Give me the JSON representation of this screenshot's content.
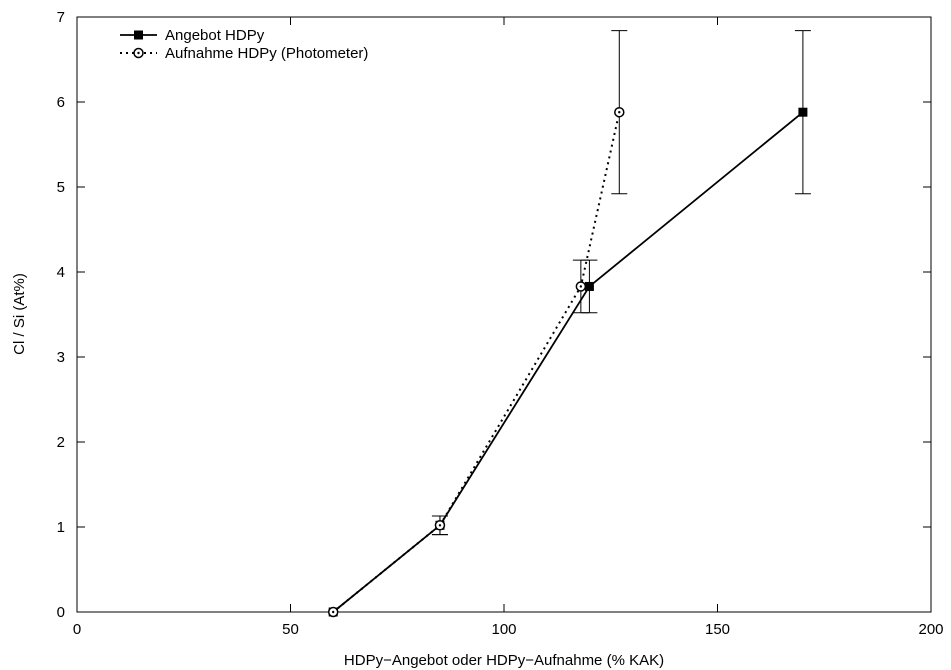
{
  "chart_data": {
    "type": "line",
    "title": "",
    "xlabel": "HDPy−Angebot oder HDPy−Aufnahme (% KAK)",
    "ylabel": "Cl / Si (At%)",
    "xlim": [
      0,
      200
    ],
    "ylim": [
      0,
      7
    ],
    "xticks": [
      "0",
      "50",
      "100",
      "150",
      "200"
    ],
    "yticks": [
      "0",
      "1",
      "2",
      "3",
      "4",
      "5",
      "6",
      "7"
    ],
    "grid": false,
    "legend_position": "top-left",
    "series": [
      {
        "name": "Angebot HDPy",
        "line_style": "solid",
        "marker": "filled-square",
        "color": "#000000",
        "x": [
          60,
          85,
          120,
          170
        ],
        "y": [
          0,
          1.02,
          3.83,
          5.88
        ],
        "y_err": [
          0,
          0.11,
          0.31,
          0.96
        ]
      },
      {
        "name": "Aufnahme HDPy (Photometer)",
        "line_style": "dotted",
        "marker": "open-circle",
        "color": "#000000",
        "x": [
          60,
          85,
          118,
          127
        ],
        "y": [
          0,
          1.02,
          3.83,
          5.88
        ],
        "y_err": [
          0,
          0.11,
          0.31,
          0.96
        ]
      }
    ]
  }
}
